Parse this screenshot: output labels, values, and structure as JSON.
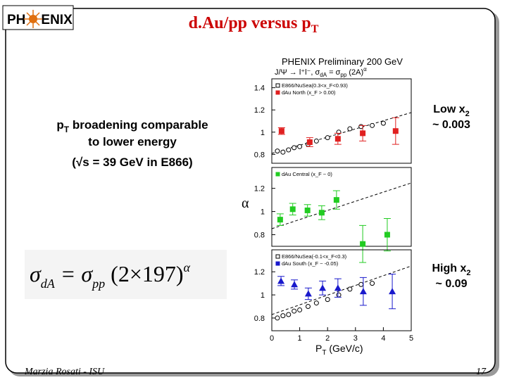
{
  "logo": [
    "PH",
    "ENIX"
  ],
  "title": {
    "main": "d.Au/pp versus p",
    "sub": "T"
  },
  "notes": {
    "line1": [
      "p",
      "T",
      " broadening comparable"
    ],
    "line2": "to lower energy",
    "line3": "(√s = 39 GeV in E866)"
  },
  "formula": [
    "σ",
    "dA",
    " = σ",
    "pp",
    " (2×197)",
    "α"
  ],
  "right_labels": {
    "top": [
      "Low x",
      "2",
      "~ 0.003"
    ],
    "bottom": [
      "High x",
      "2",
      "~ 0.09"
    ]
  },
  "footer": {
    "author": "Marzia Rosati - ISU",
    "page": "17"
  },
  "plot_text": {
    "header": "PHENIX Preliminary  200 GeV",
    "subheader": [
      "J/Ψ → l⁺l⁻,  σ",
      "dA",
      " = σ",
      "pp",
      " (2A)",
      "α"
    ],
    "y_label": "α",
    "x_label": [
      "P",
      "T",
      " (GeV/c)"
    ]
  },
  "chart_data": [
    {
      "type": "scatter",
      "xlim": [
        0,
        5
      ],
      "ylim": [
        0.72,
        1.48
      ],
      "yticks": [
        0.8,
        1,
        1.2,
        1.4
      ],
      "series": [
        {
          "name": "E866/NuSea(0.3<x_F<0.93)",
          "color": "#000000",
          "marker": "open",
          "x": [
            0.2,
            0.4,
            0.6,
            0.8,
            1.0,
            1.3,
            1.6,
            2.0,
            2.4,
            2.8,
            3.2,
            3.6,
            4.0
          ],
          "values": [
            0.83,
            0.82,
            0.84,
            0.86,
            0.87,
            0.89,
            0.92,
            0.95,
            1.0,
            1.03,
            1.05,
            1.06,
            1.08
          ]
        },
        {
          "name": "dAu North (x_F > 0.00)",
          "color": "#e02020",
          "marker": "square",
          "x": [
            0.35,
            1.36,
            2.37,
            3.26,
            4.44
          ],
          "values": [
            1.01,
            0.91,
            0.94,
            0.99,
            1.01
          ],
          "errors": [
            0.03,
            0.04,
            0.05,
            0.07,
            0.12
          ]
        }
      ]
    },
    {
      "type": "scatter",
      "xlim": [
        0,
        5
      ],
      "ylim": [
        0.7,
        1.38
      ],
      "yticks": [
        0.8,
        1,
        1.2
      ],
      "series": [
        {
          "name": "dAu Central (x_F ~ 0)",
          "color": "#22cc22",
          "marker": "square",
          "x": [
            0.3,
            0.75,
            1.28,
            1.79,
            2.32,
            3.26,
            4.14
          ],
          "values": [
            0.93,
            1.02,
            1.01,
            0.99,
            1.1,
            0.72,
            0.8
          ],
          "errors": [
            0.05,
            0.05,
            0.05,
            0.06,
            0.08,
            0.16,
            0.14
          ]
        }
      ]
    },
    {
      "type": "scatter",
      "xlim": [
        0,
        5
      ],
      "ylim": [
        0.69,
        1.39
      ],
      "yticks": [
        0.8,
        1,
        1.2
      ],
      "xticks": [
        0,
        1,
        2,
        3,
        4,
        5
      ],
      "series": [
        {
          "name": "E866/NuSea(-0.1<x_F<0.3)",
          "color": "#000000",
          "marker": "open",
          "x": [
            0.2,
            0.4,
            0.6,
            0.8,
            1.0,
            1.3,
            1.6,
            2.0,
            2.4,
            2.8,
            3.2,
            3.6
          ],
          "values": [
            0.8,
            0.82,
            0.83,
            0.86,
            0.87,
            0.9,
            0.93,
            0.96,
            1.0,
            1.05,
            1.09,
            1.1
          ]
        },
        {
          "name": "dAu South (x_F ~ -0.05)",
          "color": "#1a1acc",
          "marker": "triangle",
          "x": [
            0.33,
            0.81,
            1.31,
            1.82,
            2.37,
            3.28,
            4.32
          ],
          "values": [
            1.12,
            1.09,
            1.01,
            1.06,
            1.06,
            1.03,
            1.03
          ],
          "errors": [
            0.04,
            0.04,
            0.05,
            0.06,
            0.08,
            0.12,
            0.15
          ]
        }
      ]
    }
  ]
}
